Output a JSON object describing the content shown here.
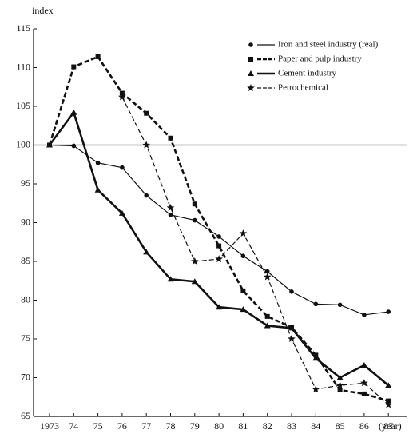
{
  "chart_data": {
    "type": "line",
    "y_label": "index",
    "x_label": "(year)",
    "categories": [
      "1973",
      "74",
      "75",
      "76",
      "77",
      "78",
      "79",
      "80",
      "81",
      "82",
      "83",
      "84",
      "85",
      "86",
      "87"
    ],
    "ylim": [
      65,
      115
    ],
    "yticks": [
      65,
      70,
      75,
      80,
      85,
      90,
      95,
      100,
      105,
      110,
      115
    ],
    "reference_line": 100,
    "series": [
      {
        "name": "Iron and steel industry (real)",
        "color": "#111111",
        "marker": "circle",
        "width": 1.2,
        "dashed": false,
        "values": [
          100,
          99.9,
          97.7,
          97.1,
          93.5,
          91,
          90.3,
          88.2,
          85.7,
          83.7,
          81.1,
          79.5,
          79.4,
          78.1,
          78.5
        ]
      },
      {
        "name": "Paper and pulp industry",
        "color": "#111111",
        "marker": "square",
        "width": 2.6,
        "dashed": true,
        "values": [
          100,
          110.1,
          111.4,
          106.7,
          104.1,
          100.9,
          92.4,
          87,
          81.2,
          77.9,
          76.5,
          72.9,
          68.4,
          67.9,
          67
        ]
      },
      {
        "name": "Cement industry",
        "color": "#111111",
        "marker": "triangle",
        "width": 2.6,
        "dashed": false,
        "values": [
          100,
          104.2,
          94.2,
          91.2,
          86.2,
          82.7,
          82.4,
          79.1,
          78.8,
          76.7,
          76.4,
          72.5,
          70,
          71.6,
          69
        ]
      },
      {
        "name": "Petrochemical",
        "color": "#111111",
        "marker": "star",
        "width": 1.2,
        "dashed": true,
        "values": [
          null,
          null,
          null,
          106.2,
          100,
          91.9,
          85,
          85.3,
          88.6,
          83,
          75,
          68.5,
          69,
          69.3,
          66.5
        ]
      }
    ]
  }
}
